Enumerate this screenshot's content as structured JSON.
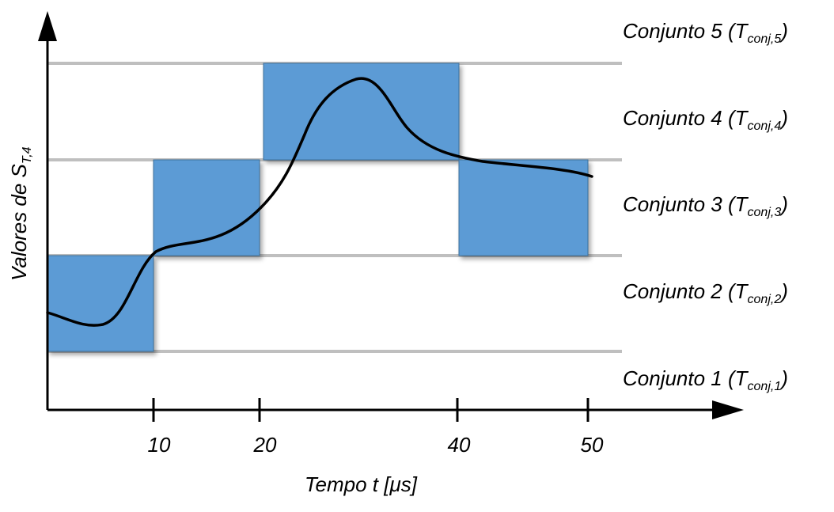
{
  "axes": {
    "y_title": "Valores de S",
    "y_title_sub": "T,4",
    "x_title": "Tempo t [μs]"
  },
  "x_ticks": [
    "10",
    "20",
    "40",
    "50"
  ],
  "sets": [
    {
      "prefix": "Conjunto  5 (T",
      "sub": "conj,5",
      "suffix": ")"
    },
    {
      "prefix": "Conjunto  4 (T",
      "sub": "conj,4",
      "suffix": ")"
    },
    {
      "prefix": "Conjunto  3 (T",
      "sub": "conj,3",
      "suffix": ")"
    },
    {
      "prefix": "Conjunto  2 (T",
      "sub": "conj,2",
      "suffix": ")"
    },
    {
      "prefix": "Conjunto  1 (T",
      "sub": "conj,1",
      "suffix": ")"
    }
  ],
  "colors": {
    "block_fill": "#5b9bd5",
    "grid_line": "#bfbfbf",
    "axis": "#000000",
    "curve": "#000000"
  }
}
